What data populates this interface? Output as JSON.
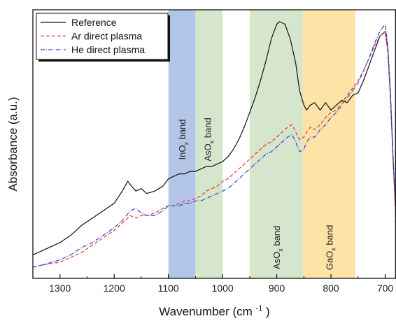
{
  "chart_data": {
    "type": "line",
    "title": "",
    "xlabel": "Wavenumber",
    "xlabel_unit": "(cm",
    "xlabel_unit_sup": "-1",
    "xlabel_unit_close": ")",
    "ylabel": "Absorbance (a.u.)",
    "xlim": [
      1350,
      680
    ],
    "ylim": [
      0,
      1
    ],
    "x_reversed": true,
    "y_ticks_labeled": false,
    "grid": false,
    "legend_position": "top-left",
    "x_ticks": [
      {
        "value": 1300,
        "label": "1300"
      },
      {
        "value": 1200,
        "label": "1200"
      },
      {
        "value": 1100,
        "label": "1100"
      },
      {
        "value": 1000,
        "label": "1000"
      },
      {
        "value": 900,
        "label": "900"
      },
      {
        "value": 800,
        "label": "800"
      },
      {
        "value": 700,
        "label": "700"
      }
    ],
    "bands": [
      {
        "from": 1100,
        "to": 1050,
        "color": "#b3c6e8",
        "label_main": "InO",
        "label_sub": "x",
        "label_rest": " band",
        "label_at": 1075,
        "label_y": 0.52
      },
      {
        "from": 1050,
        "to": 1000,
        "color": "#d6e6cc",
        "label_main": "AsO",
        "label_sub": "x",
        "label_rest": " band",
        "label_at": 1028,
        "label_y": 0.52
      },
      {
        "from": 950,
        "to": 852,
        "color": "#d6e6cc",
        "label_main": "AsO",
        "label_sub": "x",
        "label_rest": " band",
        "label_at": 901,
        "label_y": 0.08
      },
      {
        "from": 852,
        "to": 755,
        "color": "#fde3a6",
        "label_main": "GaO",
        "label_sub": "x",
        "label_rest": " band",
        "label_at": 803,
        "label_y": 0.08
      }
    ],
    "series": [
      {
        "name": "Reference",
        "color": "#111111",
        "dash": "",
        "x": [
          1350,
          1330,
          1300,
          1280,
          1260,
          1240,
          1220,
          1200,
          1185,
          1175,
          1168,
          1160,
          1150,
          1140,
          1125,
          1110,
          1100,
          1090,
          1080,
          1070,
          1060,
          1050,
          1040,
          1030,
          1020,
          1010,
          1000,
          990,
          980,
          970,
          960,
          950,
          940,
          930,
          920,
          910,
          900,
          895,
          885,
          875,
          865,
          858,
          850,
          845,
          838,
          830,
          820,
          810,
          800,
          790,
          780,
          770,
          760,
          750,
          740,
          730,
          720,
          710,
          700,
          695,
          690,
          685,
          680
        ],
        "y": [
          0.05,
          0.07,
          0.1,
          0.13,
          0.17,
          0.2,
          0.23,
          0.26,
          0.31,
          0.35,
          0.33,
          0.31,
          0.32,
          0.3,
          0.31,
          0.33,
          0.36,
          0.37,
          0.38,
          0.38,
          0.39,
          0.39,
          0.4,
          0.41,
          0.41,
          0.42,
          0.43,
          0.45,
          0.48,
          0.52,
          0.57,
          0.63,
          0.69,
          0.76,
          0.84,
          0.93,
          0.99,
          1.0,
          0.99,
          0.93,
          0.83,
          0.72,
          0.66,
          0.64,
          0.66,
          0.67,
          0.64,
          0.67,
          0.64,
          0.66,
          0.68,
          0.67,
          0.7,
          0.71,
          0.76,
          0.82,
          0.88,
          0.94,
          0.96,
          0.88,
          0.68,
          0.42,
          0.2
        ]
      },
      {
        "name": "Ar direct plasma",
        "color": "#e8312a",
        "dash": "5,3",
        "x": [
          1350,
          1330,
          1300,
          1280,
          1260,
          1240,
          1220,
          1200,
          1185,
          1170,
          1160,
          1150,
          1140,
          1125,
          1110,
          1100,
          1090,
          1080,
          1070,
          1060,
          1050,
          1040,
          1030,
          1020,
          1010,
          1000,
          990,
          980,
          970,
          960,
          950,
          940,
          930,
          920,
          910,
          900,
          890,
          880,
          872,
          865,
          858,
          850,
          845,
          838,
          830,
          820,
          810,
          800,
          790,
          780,
          770,
          760,
          750,
          740,
          730,
          720,
          710,
          700,
          695,
          690,
          685,
          680
        ],
        "y": [
          0.0,
          0.01,
          0.02,
          0.04,
          0.06,
          0.09,
          0.12,
          0.15,
          0.18,
          0.21,
          0.2,
          0.21,
          0.21,
          0.22,
          0.24,
          0.25,
          0.25,
          0.26,
          0.27,
          0.27,
          0.28,
          0.29,
          0.31,
          0.32,
          0.33,
          0.35,
          0.36,
          0.38,
          0.4,
          0.42,
          0.44,
          0.46,
          0.48,
          0.5,
          0.51,
          0.53,
          0.55,
          0.57,
          0.58,
          0.55,
          0.52,
          0.53,
          0.55,
          0.57,
          0.56,
          0.58,
          0.61,
          0.63,
          0.64,
          0.67,
          0.7,
          0.73,
          0.76,
          0.8,
          0.85,
          0.9,
          0.94,
          0.96,
          0.88,
          0.68,
          0.42,
          0.18
        ]
      },
      {
        "name": "He direct plasma",
        "color": "#2c3fd8",
        "dash": "6,2,1,2",
        "x": [
          1350,
          1330,
          1300,
          1280,
          1260,
          1240,
          1220,
          1200,
          1185,
          1170,
          1160,
          1150,
          1140,
          1125,
          1110,
          1100,
          1090,
          1080,
          1070,
          1060,
          1050,
          1040,
          1030,
          1020,
          1010,
          1000,
          990,
          980,
          970,
          960,
          950,
          940,
          930,
          920,
          910,
          900,
          890,
          880,
          872,
          865,
          858,
          850,
          845,
          838,
          830,
          820,
          810,
          800,
          790,
          780,
          770,
          760,
          750,
          740,
          730,
          720,
          710,
          700,
          695,
          690,
          685,
          680
        ],
        "y": [
          0.0,
          0.01,
          0.03,
          0.05,
          0.08,
          0.1,
          0.13,
          0.16,
          0.19,
          0.23,
          0.24,
          0.22,
          0.21,
          0.21,
          0.23,
          0.25,
          0.25,
          0.25,
          0.26,
          0.26,
          0.27,
          0.27,
          0.28,
          0.29,
          0.3,
          0.31,
          0.32,
          0.34,
          0.36,
          0.38,
          0.4,
          0.42,
          0.44,
          0.46,
          0.47,
          0.49,
          0.51,
          0.53,
          0.54,
          0.51,
          0.47,
          0.48,
          0.51,
          0.53,
          0.53,
          0.56,
          0.58,
          0.61,
          0.63,
          0.66,
          0.69,
          0.72,
          0.75,
          0.8,
          0.85,
          0.91,
          0.96,
          0.99,
          0.9,
          0.7,
          0.44,
          0.2
        ]
      }
    ]
  }
}
